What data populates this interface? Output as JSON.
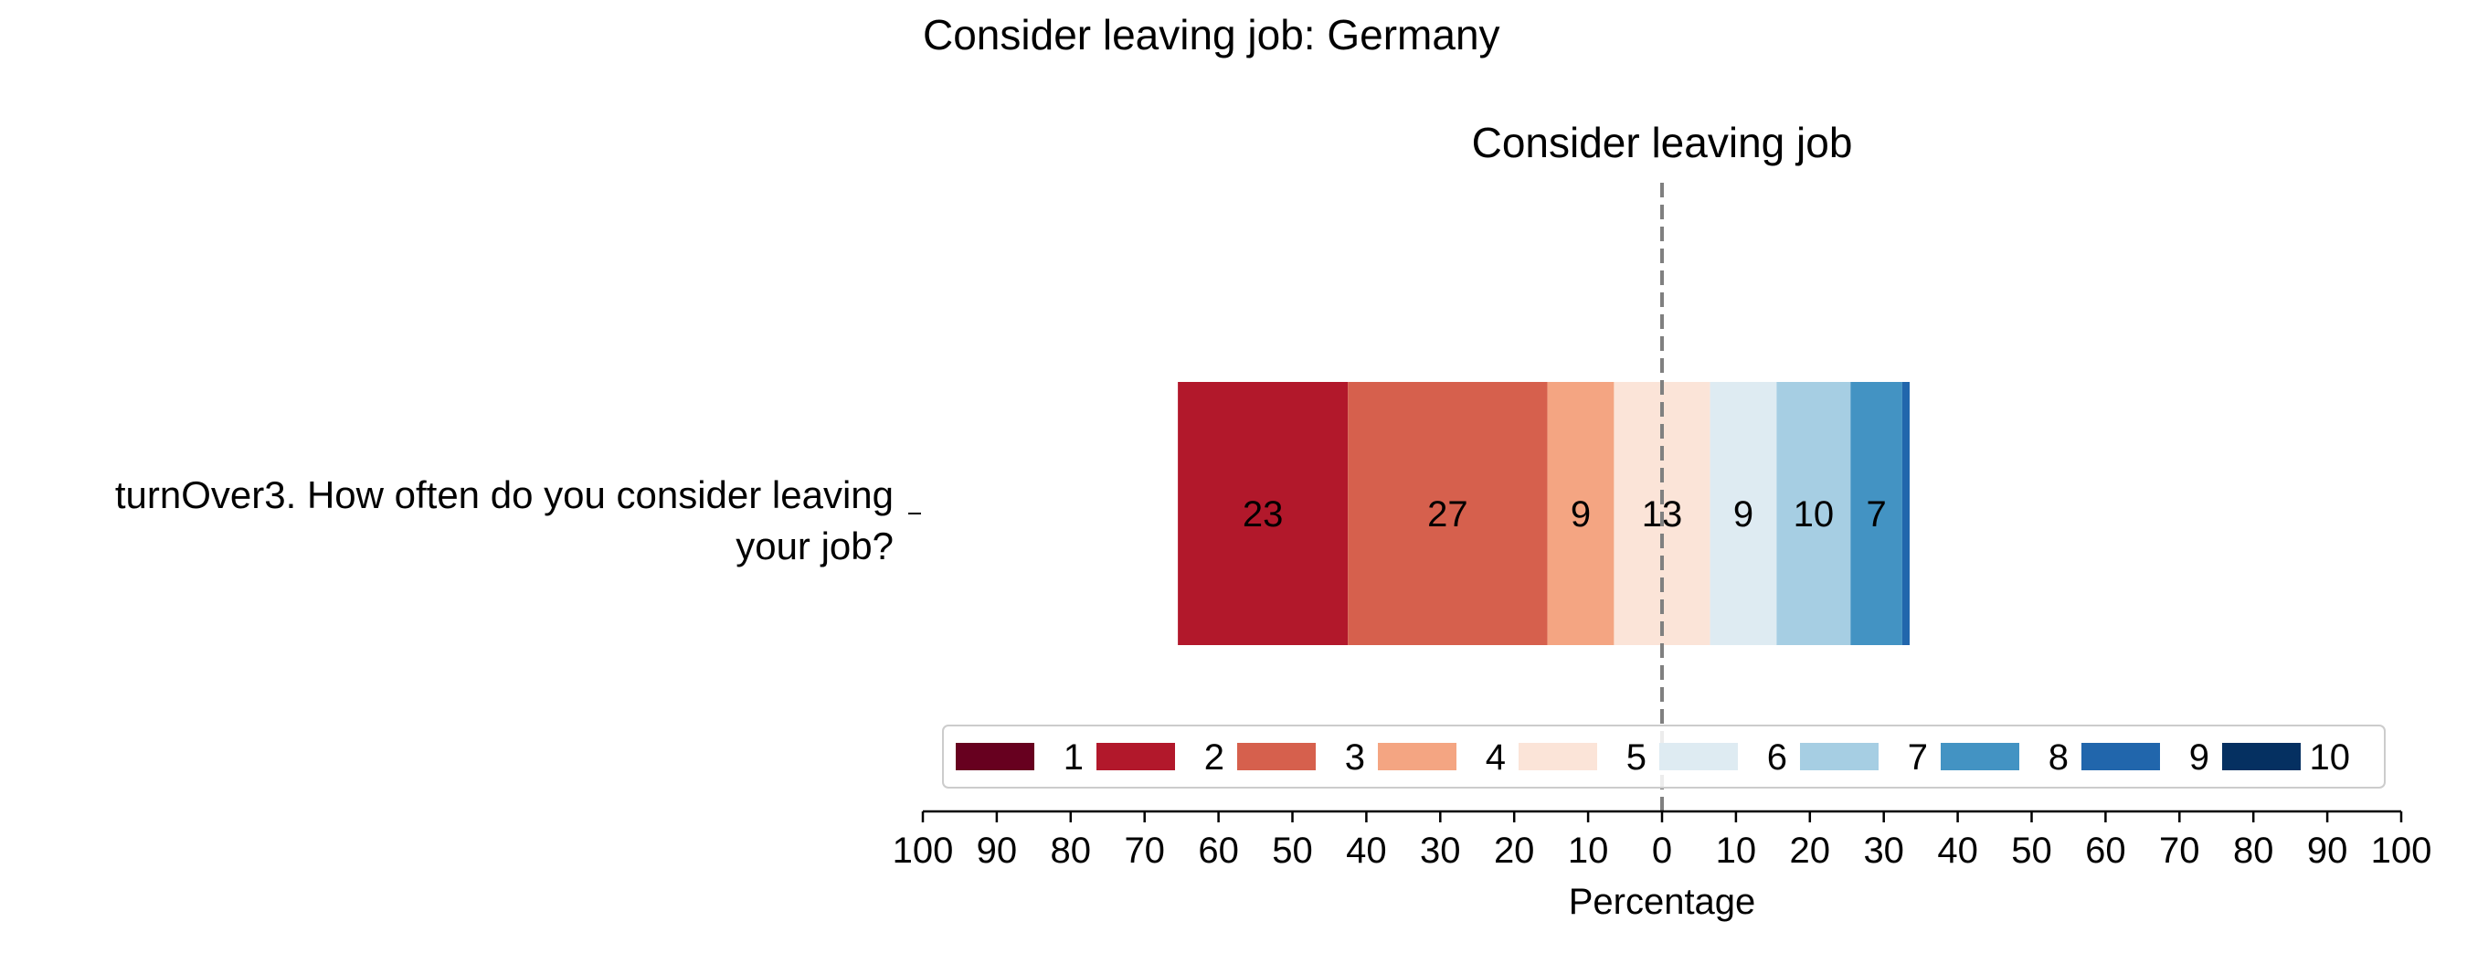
{
  "chart_data": {
    "type": "bar",
    "orientation": "horizontal",
    "stacked": true,
    "diverging": true,
    "title": "Consider leaving job: Germany",
    "panel_title": "Consider leaving job",
    "xlabel": "Percentage",
    "xlim": [
      -100,
      100
    ],
    "xticks": [
      -100,
      -90,
      -80,
      -70,
      -60,
      -50,
      -40,
      -30,
      -20,
      -10,
      0,
      10,
      20,
      30,
      40,
      50,
      60,
      70,
      80,
      90,
      100
    ],
    "xtick_labels": [
      "100",
      "90",
      "80",
      "70",
      "60",
      "50",
      "40",
      "30",
      "20",
      "10",
      "0",
      "10",
      "20",
      "30",
      "40",
      "50",
      "60",
      "70",
      "80",
      "90",
      "100"
    ],
    "categories": [
      "turnOver3. How often do you consider leaving your job?"
    ],
    "category_label_lines": [
      "turnOver3. How often do you consider leaving",
      "your job?"
    ],
    "legend_placement": "bottom-center",
    "grid": false,
    "neutral_split": {
      "series": "5",
      "left_share": 0.5
    },
    "series": [
      {
        "name": "1",
        "color": "#67001f",
        "values": [
          0
        ],
        "label": ""
      },
      {
        "name": "2",
        "color": "#b2182b",
        "values": [
          23
        ],
        "label": "23"
      },
      {
        "name": "3",
        "color": "#d6604d",
        "values": [
          27
        ],
        "label": "27"
      },
      {
        "name": "4",
        "color": "#f4a582",
        "values": [
          9
        ],
        "label": "9"
      },
      {
        "name": "5",
        "color": "#fbe4d8",
        "values": [
          13
        ],
        "label": "13"
      },
      {
        "name": "6",
        "color": "#deebf2",
        "values": [
          9
        ],
        "label": "9"
      },
      {
        "name": "7",
        "color": "#a6cee3",
        "values": [
          10
        ],
        "label": "10"
      },
      {
        "name": "8",
        "color": "#4393c3",
        "values": [
          7
        ],
        "label": "7"
      },
      {
        "name": "9",
        "color": "#2166ac",
        "values": [
          1
        ],
        "label": ""
      },
      {
        "name": "10",
        "color": "#053061",
        "values": [
          0
        ],
        "label": ""
      }
    ],
    "reference_line": {
      "x": 0,
      "style": "dashed",
      "color": "#808080"
    }
  }
}
